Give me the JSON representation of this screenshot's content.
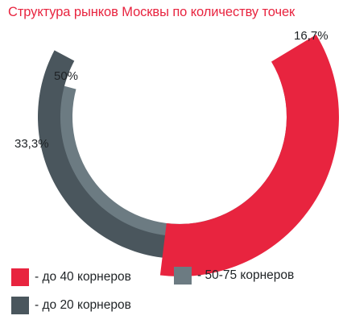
{
  "title": "Структура рынков Москвы по количеству точек",
  "chart_data": {
    "type": "donut",
    "title": "Структура рынков Москвы по количеству точек",
    "series": [
      {
        "name": "- до 40 корнеров",
        "value": 16.7,
        "label": "16,7%",
        "color": "#e8243f"
      },
      {
        "name": "- 50-75 корнеров",
        "value": 50,
        "label": "50%",
        "color": "#6c7b82"
      },
      {
        "name": "- до 20 корнеров",
        "value": 33.3,
        "label": "33,3%",
        "color": "#4a565d"
      }
    ]
  },
  "legend": [
    {
      "label": "- до 40 корнеров",
      "color": "#e8243f"
    },
    {
      "label": "- 50-75 корнеров",
      "color": "#6c7b82"
    },
    {
      "label": "- до 20 корнеров",
      "color": "#4a565d"
    }
  ]
}
